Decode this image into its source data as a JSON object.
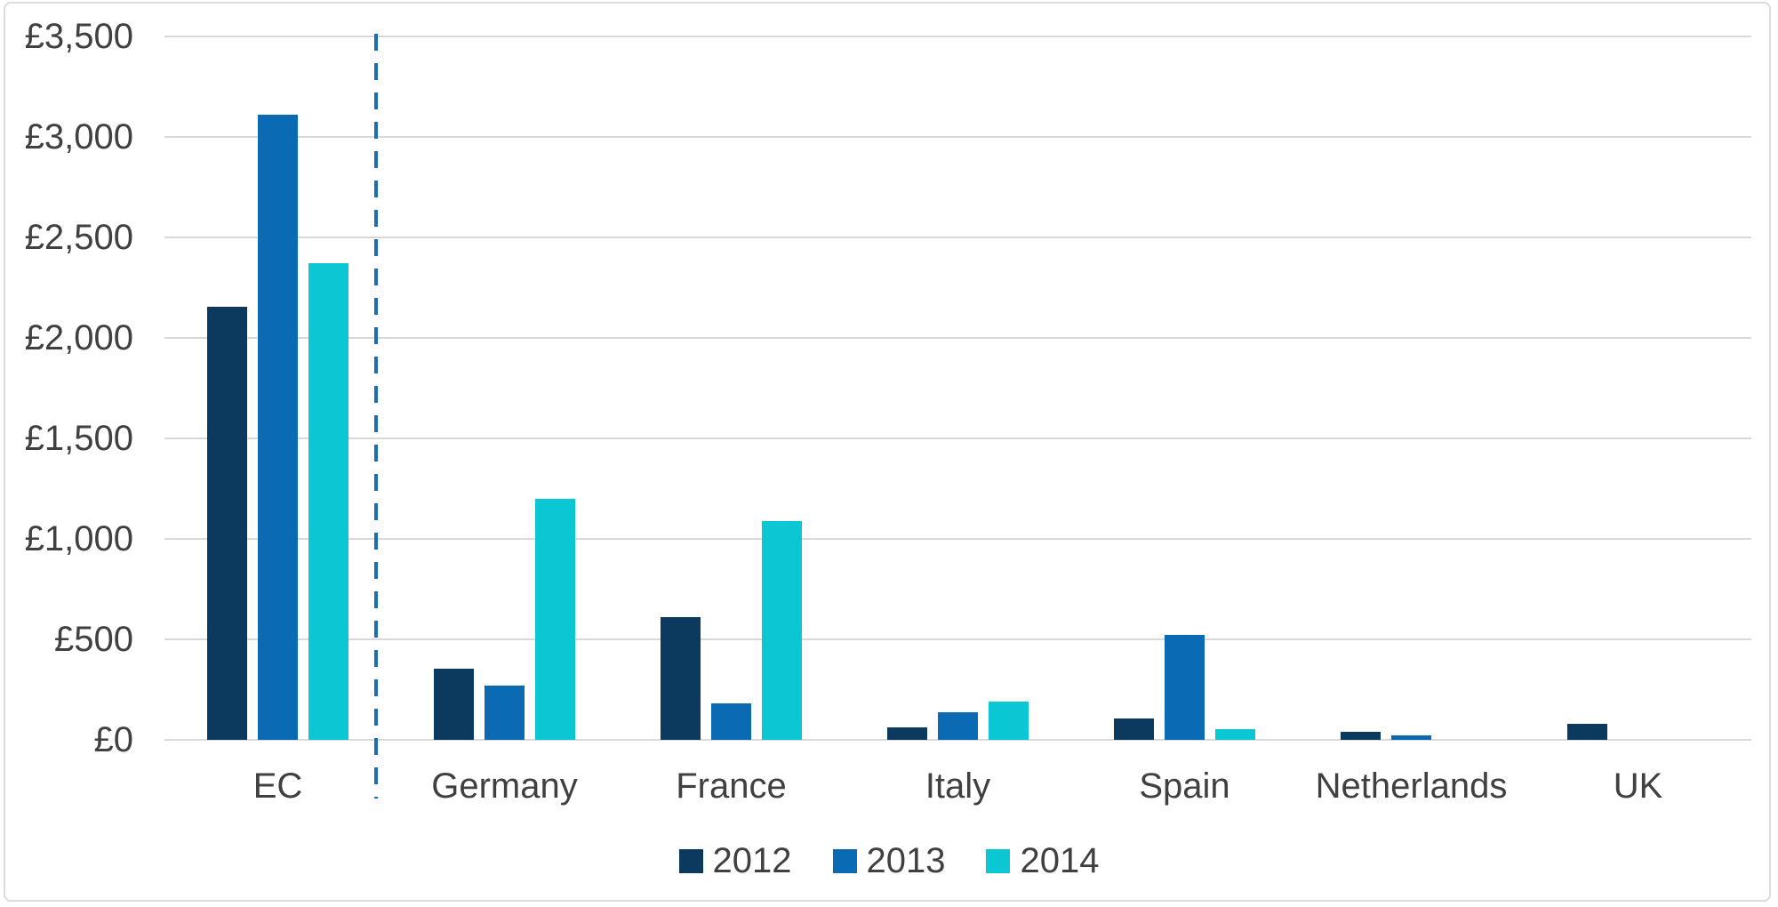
{
  "chart_data": {
    "type": "bar",
    "title": "",
    "categories": [
      "EC",
      "Germany",
      "France",
      "Italy",
      "Spain",
      "Netherlands",
      "UK"
    ],
    "series": [
      {
        "name": "2012",
        "color": "#0c3a5f",
        "values": [
          2155,
          355,
          610,
          60,
          105,
          40,
          80
        ]
      },
      {
        "name": "2013",
        "color": "#0a6ab4",
        "values": [
          3110,
          270,
          180,
          135,
          520,
          20,
          0
        ]
      },
      {
        "name": "2014",
        "color": "#0bc6d3",
        "values": [
          2370,
          1200,
          1090,
          190,
          55,
          0,
          0
        ]
      }
    ],
    "xlabel": "",
    "ylabel": "",
    "y_axis": {
      "min": 0,
      "max": 3500,
      "step": 500,
      "currency_prefix": "£",
      "tick_labels": [
        "£0",
        "£500",
        "£1,000",
        "£1,500",
        "£2,000",
        "£2,500",
        "£3,000",
        "£3,500"
      ]
    },
    "grid": true,
    "legend_position": "bottom",
    "legend_entries": [
      "2012",
      "2013",
      "2014"
    ],
    "separator": {
      "type": "vertical-dashed-line",
      "after_category": "EC",
      "color": "#1a6db6"
    }
  },
  "colors": {
    "gridline": "#d9d9d9",
    "axis_text": "#404040",
    "frame": "#dcdcdc",
    "background": "#ffffff"
  }
}
